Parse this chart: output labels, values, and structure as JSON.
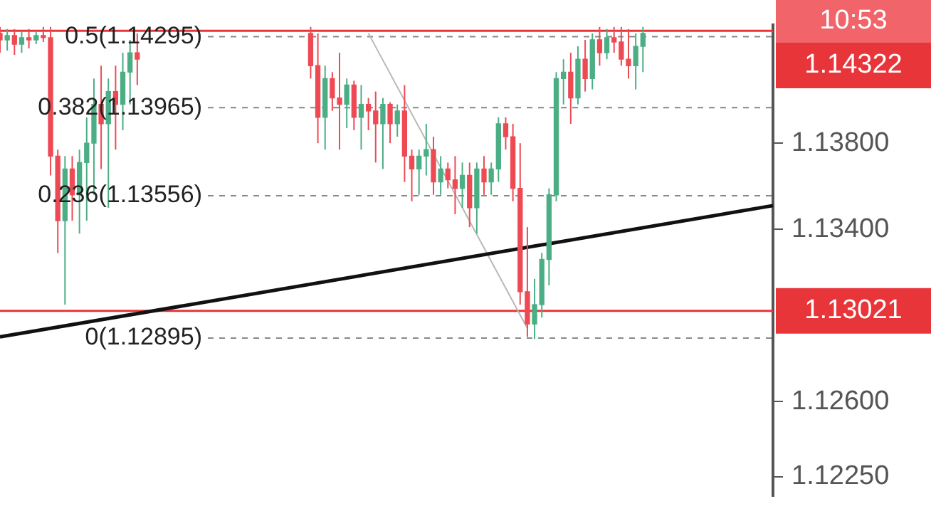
{
  "chart_data": {
    "type": "candlestick",
    "categories": [
      null,
      null,
      null,
      null,
      null,
      null,
      null,
      null,
      null,
      null,
      null,
      null,
      null,
      null,
      null,
      null,
      null,
      null,
      null,
      null,
      null,
      null,
      null,
      null,
      null,
      null,
      null,
      null,
      null,
      null,
      null,
      null,
      null,
      null,
      null,
      null,
      null,
      null,
      null,
      null,
      null,
      null,
      null,
      null,
      null,
      null,
      null,
      null,
      null,
      null,
      null,
      null,
      null,
      null,
      null,
      null,
      null,
      null,
      null,
      null,
      null,
      null,
      null,
      null,
      null,
      null,
      null,
      null,
      null,
      null,
      null,
      null,
      null,
      null,
      null,
      null,
      null,
      null,
      null,
      null,
      null,
      null,
      null,
      null,
      null,
      null,
      null,
      null,
      null,
      null,
      null,
      null,
      null,
      null,
      null,
      null,
      null,
      null,
      null,
      null,
      null,
      null,
      null,
      null,
      null,
      null,
      null,
      null
    ],
    "ohlc": [
      [
        1.1431,
        1.1434,
        1.1422,
        1.1428
      ],
      [
        1.1428,
        1.1433,
        1.1423,
        1.143
      ],
      [
        1.143,
        1.1433,
        1.1421,
        1.1426
      ],
      [
        1.1426,
        1.1432,
        1.1422,
        1.1429
      ],
      [
        1.1429,
        1.1433,
        1.1424,
        1.1428
      ],
      [
        1.1428,
        1.1432,
        1.1426,
        1.143
      ],
      [
        1.143,
        1.1434,
        1.1427,
        1.1429
      ],
      [
        1.1429,
        1.1434,
        1.1365,
        1.1374
      ],
      [
        1.1374,
        1.1377,
        1.1329,
        1.1344
      ],
      [
        1.1344,
        1.1374,
        1.1305,
        1.1368
      ],
      [
        1.1368,
        1.1374,
        1.1344,
        1.1356
      ],
      [
        1.1356,
        1.1377,
        1.1338,
        1.1371
      ],
      [
        1.1371,
        1.1392,
        1.1344,
        1.138
      ],
      [
        1.138,
        1.141,
        1.1356,
        1.1398
      ],
      [
        1.1398,
        1.1416,
        1.1368,
        1.1389
      ],
      [
        1.1389,
        1.141,
        1.135,
        1.1404
      ],
      [
        1.1404,
        1.1416,
        1.1377,
        1.1398
      ],
      [
        1.1398,
        1.1422,
        1.1386,
        1.1413
      ],
      [
        1.1413,
        1.1428,
        1.1398,
        1.1422
      ],
      [
        1.1422,
        1.1431,
        1.1407,
        1.1419
      ],
      null,
      null,
      null,
      null,
      null,
      null,
      null,
      null,
      null,
      null,
      null,
      null,
      null,
      null,
      null,
      null,
      null,
      null,
      null,
      null,
      null,
      null,
      null,
      [
        1.1431,
        1.1434,
        1.141,
        1.1416
      ],
      [
        1.1416,
        1.1431,
        1.138,
        1.1392
      ],
      [
        1.1392,
        1.1416,
        1.1377,
        1.141
      ],
      [
        1.141,
        1.1413,
        1.1395,
        1.1401
      ],
      [
        1.1401,
        1.1422,
        1.1377,
        1.1398
      ],
      [
        1.1398,
        1.141,
        1.1387,
        1.1407
      ],
      [
        1.1407,
        1.1409,
        1.1386,
        1.1392
      ],
      [
        1.1392,
        1.1407,
        1.1377,
        1.1398
      ],
      [
        1.1398,
        1.1401,
        1.1386,
        1.1395
      ],
      [
        1.1395,
        1.1404,
        1.1371,
        1.1389
      ],
      [
        1.1389,
        1.1401,
        1.1368,
        1.1398
      ],
      [
        1.1398,
        1.1399,
        1.138,
        1.1389
      ],
      [
        1.1389,
        1.1398,
        1.1383,
        1.1395
      ],
      [
        1.1395,
        1.1407,
        1.1362,
        1.1374
      ],
      [
        1.1374,
        1.1377,
        1.1353,
        1.1368
      ],
      [
        1.1368,
        1.1377,
        1.1356,
        1.1374
      ],
      [
        1.1374,
        1.1389,
        1.1365,
        1.1377
      ],
      [
        1.1377,
        1.1383,
        1.1356,
        1.1362
      ],
      [
        1.1362,
        1.1374,
        1.1356,
        1.1368
      ],
      [
        1.1368,
        1.1371,
        1.1359,
        1.1363
      ],
      [
        1.1363,
        1.1374,
        1.1347,
        1.1359
      ],
      [
        1.1359,
        1.1371,
        1.135,
        1.1365
      ],
      [
        1.1365,
        1.1371,
        1.1341,
        1.135
      ],
      [
        1.135,
        1.1371,
        1.1338,
        1.1368
      ],
      [
        1.1368,
        1.1374,
        1.1356,
        1.1362
      ],
      [
        1.1362,
        1.1371,
        1.1356,
        1.1368
      ],
      [
        1.1368,
        1.1392,
        1.1362,
        1.1389
      ],
      [
        1.1389,
        1.1392,
        1.1377,
        1.1383
      ],
      [
        1.1383,
        1.1389,
        1.1353,
        1.1359
      ],
      [
        1.1359,
        1.138,
        1.1305,
        1.1311
      ],
      [
        1.1311,
        1.1341,
        1.129,
        1.1296
      ],
      [
        1.1296,
        1.1317,
        1.1289,
        1.1305
      ],
      [
        1.1305,
        1.1329,
        1.1299,
        1.1326
      ],
      [
        1.1326,
        1.1359,
        1.1314,
        1.1356
      ],
      [
        1.1356,
        1.1413,
        1.1353,
        1.141
      ],
      [
        1.141,
        1.1419,
        1.1398,
        1.1413
      ],
      [
        1.1413,
        1.1422,
        1.1389,
        1.1401
      ],
      [
        1.1401,
        1.1425,
        1.1398,
        1.1419
      ],
      [
        1.1419,
        1.1428,
        1.1404,
        1.141
      ],
      [
        1.141,
        1.1431,
        1.1405,
        1.1428
      ],
      [
        1.1428,
        1.1434,
        1.1416,
        1.1422
      ],
      [
        1.1422,
        1.1433,
        1.1419,
        1.1429
      ],
      [
        1.1429,
        1.1434,
        1.1422,
        1.1427
      ],
      [
        1.1427,
        1.1434,
        1.1416,
        1.1419
      ],
      [
        1.1419,
        1.1433,
        1.141,
        1.1416
      ],
      [
        1.1416,
        1.1431,
        1.1405,
        1.1425
      ],
      [
        1.1425,
        1.1434,
        1.1413,
        1.1431
      ],
      null,
      null,
      null,
      null,
      null,
      null,
      null,
      null,
      null,
      null,
      null,
      null,
      null,
      null,
      null,
      null,
      null,
      null
    ],
    "series": [
      {
        "type": "line",
        "color": "#111111",
        "values": [
          1.129,
          null,
          null,
          null,
          null,
          null,
          null,
          null,
          null,
          null,
          null,
          null,
          null,
          null,
          null,
          null,
          null,
          null,
          null,
          null,
          null,
          null,
          null,
          null,
          null,
          null,
          null,
          null,
          null,
          null,
          null,
          null,
          null,
          null,
          null,
          null,
          null,
          null,
          null,
          null,
          null,
          null,
          null,
          null,
          null,
          null,
          null,
          null,
          null,
          null,
          null,
          null,
          null,
          null,
          null,
          null,
          null,
          null,
          null,
          null,
          null,
          null,
          null,
          null,
          null,
          null,
          null,
          null,
          null,
          null,
          null,
          null,
          null,
          null,
          null,
          null,
          null,
          null,
          null,
          null,
          null,
          null,
          null,
          null,
          null,
          null,
          null,
          null,
          null,
          null,
          null,
          null,
          null,
          null,
          null,
          null,
          null,
          null,
          null,
          null,
          null,
          null,
          null,
          null,
          null,
          null,
          null,
          1.1351
        ]
      },
      {
        "type": "line",
        "color": "#b8b8b8",
        "values": [
          null,
          null,
          null,
          null,
          null,
          null,
          null,
          null,
          null,
          null,
          null,
          null,
          null,
          null,
          null,
          null,
          null,
          null,
          null,
          null,
          null,
          null,
          null,
          null,
          null,
          null,
          null,
          null,
          null,
          null,
          null,
          null,
          null,
          null,
          null,
          null,
          null,
          null,
          null,
          null,
          null,
          null,
          null,
          null,
          null,
          null,
          null,
          null,
          null,
          null,
          null,
          1.1431,
          null,
          null,
          null,
          null,
          null,
          null,
          null,
          null,
          null,
          null,
          null,
          null,
          null,
          null,
          null,
          null,
          null,
          null,
          null,
          null,
          null,
          1.1294,
          null,
          null,
          null,
          null,
          null,
          null,
          null,
          null,
          null,
          null,
          null,
          null,
          null,
          null,
          null,
          null,
          null,
          null,
          null,
          null,
          null,
          null,
          null,
          null,
          null,
          null,
          null,
          null,
          null,
          null,
          null,
          null,
          null,
          null
        ]
      }
    ],
    "ylim": [
      1.1216,
      1.1435
    ],
    "yticks": [
      {
        "value": 1.138,
        "label": "1.13800"
      },
      {
        "value": 1.134,
        "label": "1.13400"
      },
      {
        "value": 1.126,
        "label": "1.12600"
      },
      {
        "value": 1.1225,
        "label": "1.12250"
      }
    ],
    "tick_labels": "y",
    "ref_lines": [
      {
        "axis": "y",
        "value": 1.14295,
        "label": "0.5(1.14295)",
        "color": "#888888",
        "line_style": "dashed"
      },
      {
        "axis": "y",
        "value": 1.13965,
        "label": "0.382(1.13965)",
        "color": "#888888",
        "line_style": "dashed"
      },
      {
        "axis": "y",
        "value": 1.13556,
        "label": "0.236(1.13556)",
        "color": "#888888",
        "line_style": "dashed"
      },
      {
        "axis": "y",
        "value": 1.12895,
        "label": "0(1.12895)",
        "color": "#888888",
        "line_style": "dashed"
      },
      {
        "axis": "y",
        "value": 1.14322,
        "label": "1.14322",
        "color": "#e8353a",
        "line_style": "solid"
      },
      {
        "axis": "y",
        "value": 1.13021,
        "label": "1.13021",
        "color": "#e8353a",
        "line_style": "solid"
      }
    ],
    "annotations": [
      "10:53"
    ],
    "legend": false,
    "grid": false
  }
}
